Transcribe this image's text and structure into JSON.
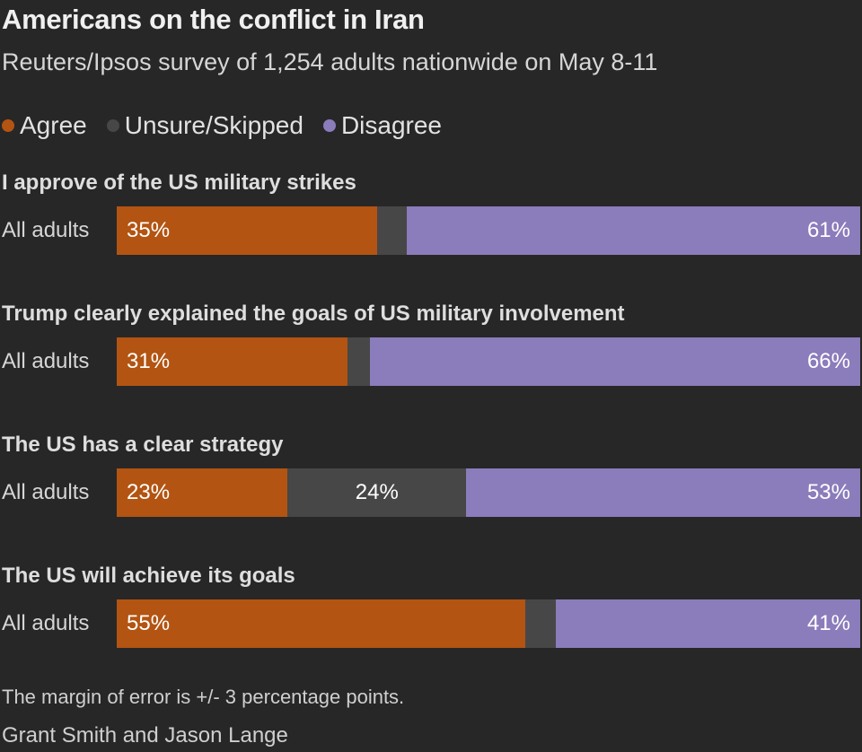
{
  "title": "Americans on the conflict in Iran",
  "subtitle": "Reuters/Ipsos survey of 1,254 adults nationwide on May 8-11",
  "legend": [
    {
      "label": "Agree",
      "color": "#b35412"
    },
    {
      "label": "Unsure/Skipped",
      "color": "#474747"
    },
    {
      "label": "Disagree",
      "color": "#8b7cbb"
    }
  ],
  "note": "The margin of error is +/- 3 percentage points.",
  "credit": "Grant Smith and Jason Lange",
  "chart_data": {
    "type": "bar",
    "orientation": "horizontal",
    "stacked": true,
    "xlim": [
      0,
      100
    ],
    "row_label": "All adults",
    "categories": [
      "I approve of the US military strikes",
      "Trump clearly explained the goals of US military involvement",
      "The US has a clear strategy",
      "The US will achieve its goals"
    ],
    "series": [
      {
        "name": "Agree",
        "color": "#b35412",
        "values": [
          35,
          31,
          23,
          55
        ],
        "labels": [
          "35%",
          "31%",
          "23%",
          "55%"
        ]
      },
      {
        "name": "Unsure/Skipped",
        "color": "#474747",
        "values": [
          4,
          3,
          24,
          4
        ],
        "labels": [
          "",
          "",
          "24%",
          ""
        ]
      },
      {
        "name": "Disagree",
        "color": "#8b7cbb",
        "values": [
          61,
          66,
          53,
          41
        ],
        "labels": [
          "61%",
          "66%",
          "53%",
          "41%"
        ]
      }
    ]
  }
}
